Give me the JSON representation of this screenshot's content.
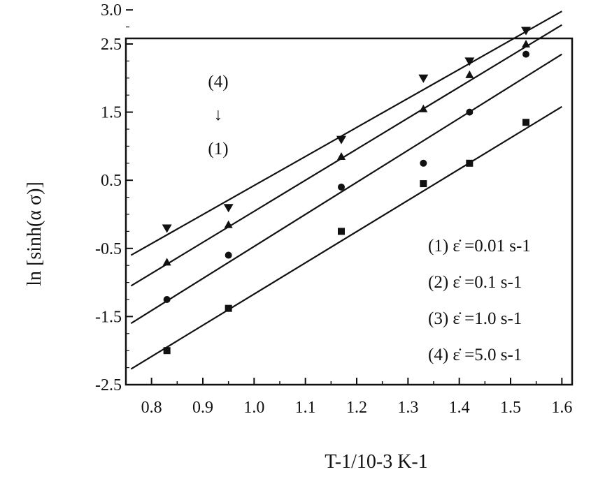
{
  "chart_data": {
    "type": "scatter",
    "title": "",
    "xlabel": "T-1/10-3 K-1",
    "ylabel": "ln [sinh(α σ)]",
    "xlim": [
      0.75,
      1.62
    ],
    "ylim": [
      -2.5,
      3.2
    ],
    "x_ticks": [
      "0.8",
      "0.9",
      "1.0",
      "1.1",
      "1.2",
      "1.3",
      "1.4",
      "1.5",
      "1.6"
    ],
    "y_ticks": [
      "3.0",
      "2.5",
      "1.5",
      "0.5",
      "-0.5",
      "-1.5",
      "-2.5"
    ],
    "grid": false,
    "legend_position": "bottom-right",
    "annotation": {
      "top": "(4)",
      "arrow": "↓",
      "bottom": "(1)"
    },
    "series": [
      {
        "name": "(1) ε̇ =0.01 s-1",
        "marker": "triangle-down",
        "x": [
          0.83,
          0.95,
          1.17,
          1.33,
          1.42,
          1.53
        ],
        "y": [
          -0.2,
          0.1,
          1.1,
          2.0,
          2.25,
          2.7
        ],
        "fit": {
          "x": [
            0.76,
            1.6
          ],
          "y": [
            -0.6,
            2.98
          ]
        }
      },
      {
        "name": "(2) ε̇ =0.1 s-1",
        "marker": "triangle-up",
        "x": [
          0.83,
          0.95,
          1.17,
          1.33,
          1.42,
          1.53
        ],
        "y": [
          -0.7,
          -0.15,
          0.85,
          1.55,
          2.05,
          2.5
        ],
        "fit": {
          "x": [
            0.76,
            1.6
          ],
          "y": [
            -1.05,
            2.78
          ]
        }
      },
      {
        "name": "(3) ε̇ =1.0 s-1",
        "marker": "circle",
        "x": [
          0.83,
          0.95,
          1.17,
          1.33,
          1.42,
          1.53
        ],
        "y": [
          -1.25,
          -0.6,
          0.4,
          0.75,
          1.5,
          2.35
        ],
        "fit": {
          "x": [
            0.76,
            1.6
          ],
          "y": [
            -1.6,
            2.35
          ]
        }
      },
      {
        "name": "(4) ε̇ =5.0 s-1",
        "marker": "square",
        "x": [
          0.83,
          0.95,
          1.17,
          1.33,
          1.42,
          1.53
        ],
        "y": [
          -2.0,
          -1.38,
          -0.25,
          0.45,
          0.75,
          1.35
        ],
        "fit": {
          "x": [
            0.76,
            1.6
          ],
          "y": [
            -2.27,
            1.58
          ]
        }
      }
    ]
  }
}
